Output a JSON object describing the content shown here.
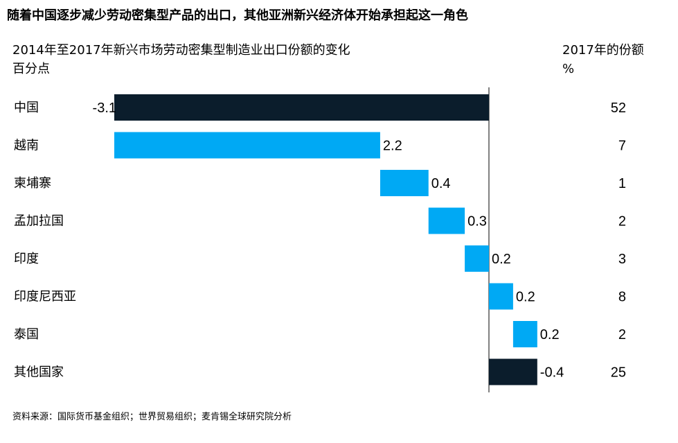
{
  "headline": "随着中国逐步减少劳动密集型产品的出口，其他亚洲新兴经济体开始承担起这一角色",
  "share_header": {
    "line1": "2017年的份额",
    "line2": "%"
  },
  "source": "资料来源：国际货币基金组织；世界贸易组织；麦肯锡全球研究院分析",
  "colors": {
    "decline": "#0b1d2c",
    "increase": "#00a9f4",
    "axis": "#000000"
  },
  "chart_data": {
    "type": "bar",
    "subtype": "waterfall",
    "title": "2014年至2017年新兴市场劳动密集型制造业出口份额的变化",
    "unit_label": "百分点",
    "categories": [
      "中国",
      "越南",
      "柬埔寨",
      "孟加拉国",
      "印度",
      "印度尼西亚",
      "泰国",
      "其他国家"
    ],
    "values": [
      -3.1,
      2.2,
      0.4,
      0.3,
      0.2,
      0.2,
      0.2,
      -0.4
    ],
    "value_labels": [
      "-3.1",
      "2.2",
      "0.4",
      "0.3",
      "0.2",
      "0.2",
      "0.2",
      "-0.4"
    ],
    "share_2017": [
      "52",
      "7",
      "1",
      "2",
      "3",
      "8",
      "2",
      "25"
    ],
    "xlim": [
      -3.1,
      0.4
    ],
    "baseline": 0,
    "legend": "none",
    "grid": false
  }
}
